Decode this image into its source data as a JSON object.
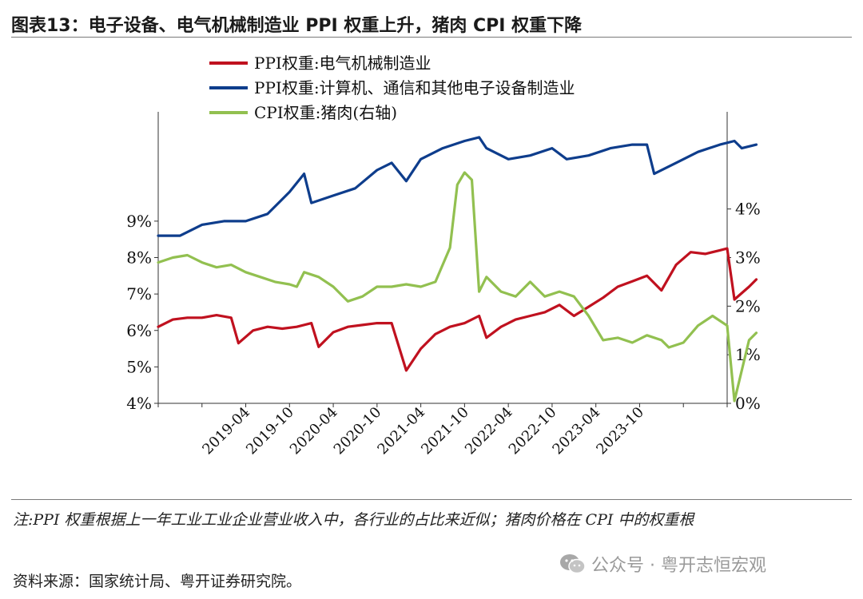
{
  "title": "图表13：电子设备、电气机械制造业 PPI 权重上升，猪肉 CPI 权重下降",
  "note": "注:PPI 权重根据上一年工业工业企业营业收入中，各行业的占比来近似；猪肉价格在 CPI 中的权重根",
  "source": "资料来源：国家统计局、粤开证券研究院。",
  "watermark": "公众号 · 粤开志恒宏观",
  "colors": {
    "ppi_electric": "#c0111f",
    "ppi_computer": "#0e3d8c",
    "cpi_pork": "#92c050"
  },
  "chart_data": {
    "type": "line",
    "x_tick_labels": [
      "2019-04",
      "2019-10",
      "2020-04",
      "2020-10",
      "2021-04",
      "2021-10",
      "2022-04",
      "2022-10",
      "2023-04",
      "2023-10"
    ],
    "x_range": [
      "2018-04",
      "2024-10"
    ],
    "left_axis": {
      "tick_labels": [
        "4%",
        "5%",
        "6%",
        "7%",
        "8%",
        "9%"
      ],
      "range": [
        4,
        12
      ]
    },
    "right_axis": {
      "tick_labels": [
        "0%",
        "1%",
        "2%",
        "3%",
        "4%"
      ],
      "range": [
        0,
        6
      ]
    },
    "series": [
      {
        "name": "PPI权重:电气机械制造业",
        "axis": "left",
        "color": "#c0111f",
        "points": [
          [
            "2018-04",
            6.1
          ],
          [
            "2018-06",
            6.3
          ],
          [
            "2018-08",
            6.35
          ],
          [
            "2018-10",
            6.35
          ],
          [
            "2018-12",
            6.42
          ],
          [
            "2019-02",
            6.35
          ],
          [
            "2019-03",
            5.65
          ],
          [
            "2019-05",
            6.0
          ],
          [
            "2019-07",
            6.1
          ],
          [
            "2019-09",
            6.05
          ],
          [
            "2019-11",
            6.1
          ],
          [
            "2020-01",
            6.2
          ],
          [
            "2020-02",
            5.55
          ],
          [
            "2020-04",
            5.95
          ],
          [
            "2020-06",
            6.1
          ],
          [
            "2020-08",
            6.15
          ],
          [
            "2020-10",
            6.2
          ],
          [
            "2020-12",
            6.2
          ],
          [
            "2021-02",
            4.9
          ],
          [
            "2021-04",
            5.5
          ],
          [
            "2021-06",
            5.9
          ],
          [
            "2021-08",
            6.1
          ],
          [
            "2021-10",
            6.2
          ],
          [
            "2021-12",
            6.4
          ],
          [
            "2022-01",
            5.8
          ],
          [
            "2022-03",
            6.1
          ],
          [
            "2022-05",
            6.3
          ],
          [
            "2022-07",
            6.4
          ],
          [
            "2022-09",
            6.5
          ],
          [
            "2022-11",
            6.7
          ],
          [
            "2023-01",
            6.4
          ],
          [
            "2023-03",
            6.65
          ],
          [
            "2023-05",
            6.9
          ],
          [
            "2023-07",
            7.2
          ],
          [
            "2023-09",
            7.35
          ],
          [
            "2023-11",
            7.5
          ],
          [
            "2024-01",
            7.1
          ],
          [
            "2024-03",
            7.8
          ],
          [
            "2024-05",
            8.15
          ],
          [
            "2024-07",
            8.1
          ],
          [
            "2024-09",
            8.2
          ],
          [
            "2024-10",
            8.25
          ],
          [
            "2024-11",
            6.85
          ],
          [
            "2025-01",
            7.2
          ],
          [
            "2025-02",
            7.4
          ]
        ]
      },
      {
        "name": "PPI权重:计算机、通信和其他电子设备制造业",
        "axis": "left",
        "color": "#0e3d8c",
        "points": [
          [
            "2018-04",
            8.6
          ],
          [
            "2018-07",
            8.6
          ],
          [
            "2018-10",
            8.9
          ],
          [
            "2019-01",
            9.0
          ],
          [
            "2019-04",
            9.0
          ],
          [
            "2019-07",
            9.2
          ],
          [
            "2019-10",
            9.8
          ],
          [
            "2019-12",
            10.3
          ],
          [
            "2020-01",
            9.5
          ],
          [
            "2020-04",
            9.7
          ],
          [
            "2020-07",
            9.9
          ],
          [
            "2020-10",
            10.4
          ],
          [
            "2020-12",
            10.6
          ],
          [
            "2021-02",
            10.1
          ],
          [
            "2021-04",
            10.7
          ],
          [
            "2021-07",
            11.0
          ],
          [
            "2021-10",
            11.2
          ],
          [
            "2021-12",
            11.3
          ],
          [
            "2022-01",
            11.0
          ],
          [
            "2022-04",
            10.7
          ],
          [
            "2022-07",
            10.8
          ],
          [
            "2022-10",
            11.0
          ],
          [
            "2022-12",
            10.7
          ],
          [
            "2023-03",
            10.8
          ],
          [
            "2023-06",
            11.0
          ],
          [
            "2023-09",
            11.1
          ],
          [
            "2023-11",
            11.1
          ],
          [
            "2023-12",
            10.3
          ],
          [
            "2024-03",
            10.6
          ],
          [
            "2024-06",
            10.9
          ],
          [
            "2024-09",
            11.1
          ],
          [
            "2024-11",
            11.2
          ],
          [
            "2024-12",
            11.0
          ],
          [
            "2025-02",
            11.1
          ]
        ]
      },
      {
        "name": "CPI权重:猪肉(右轴)",
        "axis": "right",
        "color": "#92c050",
        "points": [
          [
            "2018-04",
            2.9
          ],
          [
            "2018-06",
            3.0
          ],
          [
            "2018-08",
            3.05
          ],
          [
            "2018-10",
            2.9
          ],
          [
            "2018-12",
            2.8
          ],
          [
            "2019-02",
            2.85
          ],
          [
            "2019-04",
            2.7
          ],
          [
            "2019-06",
            2.6
          ],
          [
            "2019-08",
            2.5
          ],
          [
            "2019-10",
            2.45
          ],
          [
            "2019-11",
            2.4
          ],
          [
            "2019-12",
            2.7
          ],
          [
            "2020-02",
            2.6
          ],
          [
            "2020-04",
            2.4
          ],
          [
            "2020-06",
            2.1
          ],
          [
            "2020-08",
            2.2
          ],
          [
            "2020-10",
            2.4
          ],
          [
            "2020-12",
            2.4
          ],
          [
            "2021-02",
            2.45
          ],
          [
            "2021-04",
            2.4
          ],
          [
            "2021-06",
            2.5
          ],
          [
            "2021-08",
            3.2
          ],
          [
            "2021-09",
            4.5
          ],
          [
            "2021-10",
            4.75
          ],
          [
            "2021-11",
            4.6
          ],
          [
            "2021-12",
            2.3
          ],
          [
            "2022-01",
            2.6
          ],
          [
            "2022-03",
            2.3
          ],
          [
            "2022-05",
            2.2
          ],
          [
            "2022-07",
            2.5
          ],
          [
            "2022-09",
            2.2
          ],
          [
            "2022-11",
            2.3
          ],
          [
            "2023-01",
            2.2
          ],
          [
            "2023-03",
            1.8
          ],
          [
            "2023-05",
            1.3
          ],
          [
            "2023-07",
            1.35
          ],
          [
            "2023-09",
            1.25
          ],
          [
            "2023-11",
            1.4
          ],
          [
            "2024-01",
            1.3
          ],
          [
            "2024-02",
            1.15
          ],
          [
            "2024-04",
            1.25
          ],
          [
            "2024-06",
            1.6
          ],
          [
            "2024-08",
            1.8
          ],
          [
            "2024-10",
            1.6
          ],
          [
            "2024-11",
            0.05
          ],
          [
            "2025-01",
            1.3
          ],
          [
            "2025-02",
            1.45
          ]
        ]
      }
    ],
    "legend_placement": "top-center"
  }
}
